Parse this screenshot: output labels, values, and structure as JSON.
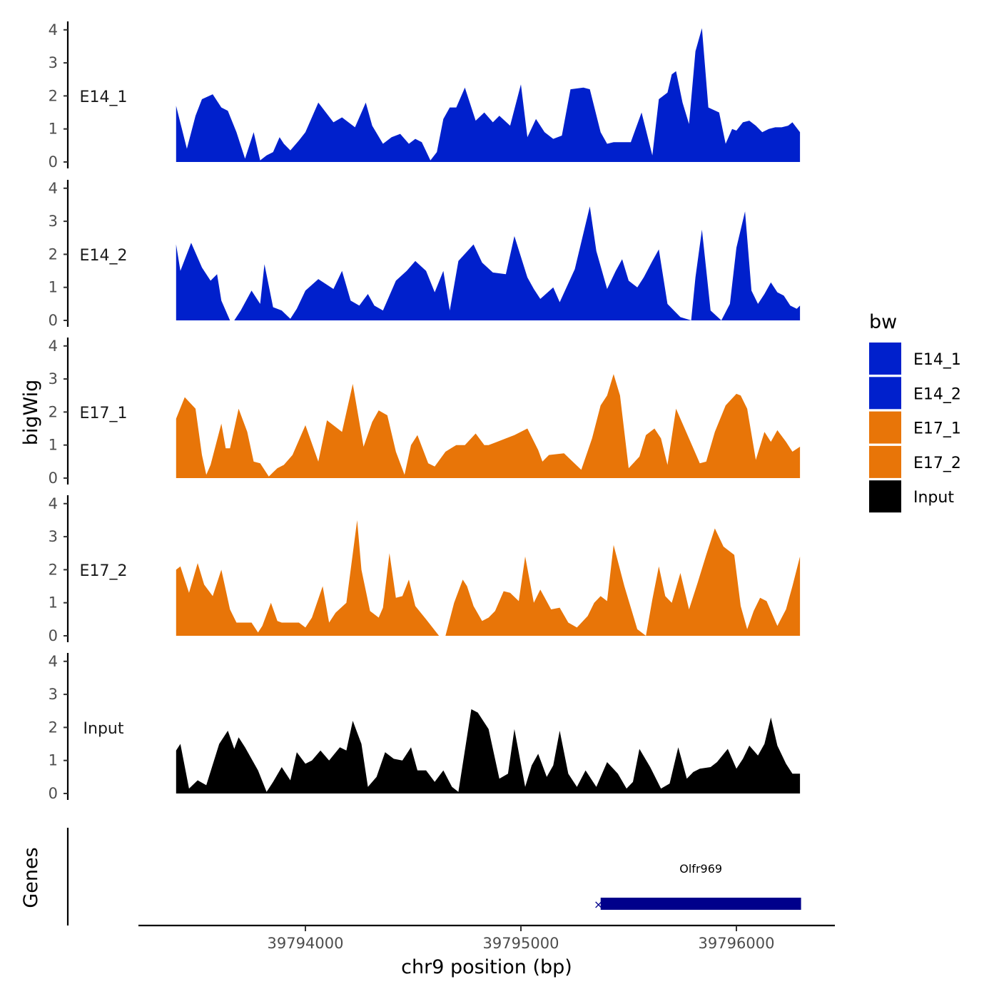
{
  "chart_data": {
    "type": "area",
    "title": "",
    "ylabel": "bigWig",
    "xlabel": "chr9 position (bp)",
    "genes_label": "Genes",
    "xlim": [
      39793230,
      39796450
    ],
    "ylim": [
      0,
      4
    ],
    "x_ticks": [
      39794000,
      39795000,
      39796000
    ],
    "x_tick_labels": [
      "39794000",
      "39795000",
      "39796000"
    ],
    "y_ticks": [
      0,
      1,
      2,
      3,
      4
    ],
    "y_tick_labels": [
      "0",
      "1",
      "2",
      "3",
      "4"
    ],
    "legend": {
      "title": "bw",
      "position": "right",
      "items": [
        {
          "label": "E14_1",
          "color": "#0020cc"
        },
        {
          "label": "E14_2",
          "color": "#0020cc"
        },
        {
          "label": "E17_1",
          "color": "#e87508"
        },
        {
          "label": "E17_2",
          "color": "#e87508"
        },
        {
          "label": "Input",
          "color": "#000000"
        }
      ]
    },
    "series": [
      {
        "name": "E14_1",
        "color": "#0020cc",
        "x": [
          39793400,
          39793450,
          39793490,
          39793520,
          39793570,
          39793610,
          39793640,
          39793680,
          39793720,
          39793760,
          39793790,
          39793820,
          39793850,
          39793880,
          39793900,
          39793930,
          39793970,
          39794000,
          39794060,
          39794130,
          39794170,
          39794230,
          39794280,
          39794310,
          39794360,
          39794400,
          39794440,
          39794480,
          39794510,
          39794540,
          39794580,
          39794610,
          39794640,
          39794670,
          39794700,
          39794740,
          39794790,
          39794830,
          39794870,
          39794900,
          39794950,
          39795000,
          39795030,
          39795070,
          39795110,
          39795150,
          39795190,
          39795230,
          39795290,
          39795320,
          39795370,
          39795400,
          39795430,
          39795460,
          39795510,
          39795560,
          39795610,
          39795640,
          39795680,
          39795700,
          39795720,
          39795750,
          39795780,
          39795810,
          39795840,
          39795870,
          39795920,
          39795950,
          39795980,
          39796000,
          39796030,
          39796060,
          39796090,
          39796120,
          39796150,
          39796180,
          39796210,
          39796240,
          39796260,
          39796295
        ],
        "y": [
          1.7,
          0.4,
          1.4,
          1.9,
          2.05,
          1.65,
          1.55,
          0.9,
          0.1,
          0.9,
          0.05,
          0.2,
          0.3,
          0.75,
          0.55,
          0.35,
          0.65,
          0.9,
          1.8,
          1.2,
          1.35,
          1.05,
          1.8,
          1.1,
          0.55,
          0.75,
          0.85,
          0.55,
          0.7,
          0.6,
          0.05,
          0.3,
          1.3,
          1.65,
          1.65,
          2.25,
          1.25,
          1.5,
          1.2,
          1.4,
          1.1,
          2.35,
          0.75,
          1.3,
          0.9,
          0.7,
          0.8,
          2.2,
          2.25,
          2.2,
          0.9,
          0.55,
          0.6,
          0.6,
          0.6,
          1.5,
          0.2,
          1.9,
          2.1,
          2.65,
          2.75,
          1.8,
          1.15,
          3.35,
          4.05,
          1.65,
          1.5,
          0.55,
          1.0,
          0.95,
          1.2,
          1.25,
          1.1,
          0.9,
          1.0,
          1.05,
          1.05,
          1.1,
          1.2,
          0.9
        ]
      },
      {
        "name": "E14_2",
        "color": "#0020cc",
        "x": [
          39793400,
          39793420,
          39793470,
          39793520,
          39793560,
          39793590,
          39793610,
          39793650,
          39793670,
          39793700,
          39793750,
          39793790,
          39793810,
          39793850,
          39793890,
          39793930,
          39793960,
          39794000,
          39794060,
          39794130,
          39794170,
          39794210,
          39794250,
          39794290,
          39794320,
          39794360,
          39794420,
          39794470,
          39794510,
          39794560,
          39794600,
          39794640,
          39794670,
          39794710,
          39794780,
          39794820,
          39794870,
          39794930,
          39794970,
          39795030,
          39795060,
          39795090,
          39795150,
          39795180,
          39795250,
          39795320,
          39795350,
          39795400,
          39795440,
          39795470,
          39795500,
          39795540,
          39795570,
          39795610,
          39795640,
          39795680,
          39795710,
          39795740,
          39795790,
          39795810,
          39795840,
          39795880,
          39795930,
          39795970,
          39796000,
          39796040,
          39796070,
          39796100,
          39796130,
          39796160,
          39796190,
          39796220,
          39796250,
          39796280,
          39796295
        ],
        "y": [
          2.3,
          1.5,
          2.35,
          1.6,
          1.2,
          1.4,
          0.6,
          0.0,
          0.0,
          0.3,
          0.9,
          0.5,
          1.7,
          0.4,
          0.3,
          0.05,
          0.35,
          0.9,
          1.25,
          0.95,
          1.5,
          0.6,
          0.45,
          0.8,
          0.45,
          0.3,
          1.2,
          1.5,
          1.8,
          1.5,
          0.85,
          1.5,
          0.3,
          1.8,
          2.3,
          1.75,
          1.45,
          1.4,
          2.55,
          1.3,
          0.95,
          0.65,
          1.0,
          0.55,
          1.55,
          3.45,
          2.1,
          0.95,
          1.5,
          1.85,
          1.2,
          1.0,
          1.3,
          1.8,
          2.15,
          0.5,
          0.3,
          0.1,
          0.0,
          1.3,
          2.75,
          0.3,
          0.0,
          0.5,
          2.2,
          3.3,
          0.9,
          0.5,
          0.8,
          1.15,
          0.85,
          0.75,
          0.45,
          0.35,
          0.45
        ]
      },
      {
        "name": "E17_1",
        "color": "#e87508",
        "x": [
          39793400,
          39793440,
          39793490,
          39793520,
          39793540,
          39793560,
          39793610,
          39793630,
          39793650,
          39793690,
          39793730,
          39793760,
          39793790,
          39793830,
          39793870,
          39793900,
          39793940,
          39794000,
          39794060,
          39794100,
          39794170,
          39794220,
          39794270,
          39794310,
          39794340,
          39794380,
          39794420,
          39794460,
          39794490,
          39794520,
          39794570,
          39794600,
          39794650,
          39794700,
          39794740,
          39794790,
          39794830,
          39794850,
          39794890,
          39794930,
          39794970,
          39795030,
          39795080,
          39795100,
          39795130,
          39795200,
          39795240,
          39795280,
          39795330,
          39795370,
          39795400,
          39795430,
          39795460,
          39795500,
          39795550,
          39795580,
          39795620,
          39795650,
          39795680,
          39795720,
          39795760,
          39795800,
          39795830,
          39795860,
          39795900,
          39795950,
          39796000,
          39796020,
          39796050,
          39796090,
          39796130,
          39796160,
          39796190,
          39796230,
          39796260,
          39796295
        ],
        "y": [
          1.8,
          2.45,
          2.1,
          0.7,
          0.1,
          0.4,
          1.65,
          0.9,
          0.9,
          2.1,
          1.4,
          0.5,
          0.45,
          0.05,
          0.3,
          0.4,
          0.7,
          1.6,
          0.5,
          1.75,
          1.4,
          2.85,
          0.95,
          1.7,
          2.05,
          1.9,
          0.8,
          0.1,
          1.0,
          1.3,
          0.45,
          0.35,
          0.8,
          1.0,
          1.0,
          1.35,
          1.0,
          1.0,
          1.1,
          1.2,
          1.3,
          1.5,
          0.85,
          0.5,
          0.7,
          0.75,
          0.5,
          0.25,
          1.2,
          2.2,
          2.5,
          3.15,
          2.5,
          0.3,
          0.65,
          1.3,
          1.5,
          1.2,
          0.4,
          2.1,
          1.5,
          0.9,
          0.45,
          0.5,
          1.4,
          2.2,
          2.55,
          2.5,
          2.1,
          0.55,
          1.4,
          1.1,
          1.45,
          1.1,
          0.8,
          0.95
        ]
      },
      {
        "name": "E17_2",
        "color": "#e87508",
        "x": [
          39793400,
          39793420,
          39793460,
          39793500,
          39793530,
          39793570,
          39793610,
          39793650,
          39793680,
          39793720,
          39793750,
          39793780,
          39793800,
          39793840,
          39793870,
          39793890,
          39793920,
          39793970,
          39794000,
          39794030,
          39794080,
          39794110,
          39794140,
          39794190,
          39794240,
          39794260,
          39794300,
          39794340,
          39794360,
          39794390,
          39794420,
          39794450,
          39794480,
          39794510,
          39794560,
          39794620,
          39794650,
          39794690,
          39794730,
          39794750,
          39794780,
          39794820,
          39794850,
          39794880,
          39794920,
          39794950,
          39794990,
          39795020,
          39795060,
          39795090,
          39795140,
          39795180,
          39795220,
          39795260,
          39795310,
          39795340,
          39795370,
          39795400,
          39795430,
          39795480,
          39795540,
          39795580,
          39795610,
          39795640,
          39795670,
          39795700,
          39795740,
          39795780,
          39795820,
          39795860,
          39795900,
          39795940,
          39795990,
          39796020,
          39796050,
          39796080,
          39796110,
          39796140,
          39796190,
          39796230,
          39796260,
          39796295
        ],
        "y": [
          2.0,
          2.1,
          1.3,
          2.2,
          1.55,
          1.2,
          2.0,
          0.8,
          0.4,
          0.4,
          0.4,
          0.1,
          0.3,
          1.0,
          0.45,
          0.4,
          0.4,
          0.4,
          0.25,
          0.55,
          1.5,
          0.4,
          0.7,
          1.0,
          3.5,
          2.0,
          0.75,
          0.55,
          0.85,
          2.5,
          1.15,
          1.2,
          1.7,
          0.9,
          0.5,
          0.0,
          0.0,
          1.0,
          1.7,
          1.5,
          0.9,
          0.45,
          0.55,
          0.75,
          1.35,
          1.3,
          1.05,
          2.4,
          1.0,
          1.4,
          0.8,
          0.85,
          0.4,
          0.25,
          0.6,
          1.0,
          1.2,
          1.05,
          2.75,
          1.5,
          0.2,
          0.0,
          1.1,
          2.1,
          1.2,
          1.0,
          1.9,
          0.8,
          1.6,
          2.45,
          3.25,
          2.7,
          2.45,
          0.9,
          0.2,
          0.75,
          1.15,
          1.05,
          0.3,
          0.8,
          1.5,
          2.4
        ]
      },
      {
        "name": "Input",
        "color": "#000000",
        "x": [
          39793400,
          39793420,
          39793460,
          39793500,
          39793540,
          39793600,
          39793640,
          39793670,
          39793690,
          39793720,
          39793780,
          39793820,
          39793850,
          39793890,
          39793930,
          39793960,
          39794000,
          39794030,
          39794070,
          39794110,
          39794160,
          39794190,
          39794220,
          39794260,
          39794290,
          39794330,
          39794370,
          39794410,
          39794450,
          39794490,
          39794520,
          39794560,
          39794600,
          39794640,
          39794680,
          39794710,
          39794770,
          39794800,
          39794850,
          39794900,
          39794940,
          39794970,
          39795020,
          39795050,
          39795080,
          39795120,
          39795150,
          39795180,
          39795220,
          39795260,
          39795300,
          39795350,
          39795400,
          39795450,
          39795490,
          39795520,
          39795550,
          39795600,
          39795650,
          39795690,
          39795730,
          39795770,
          39795800,
          39795830,
          39795880,
          39795910,
          39795960,
          39796000,
          39796030,
          39796060,
          39796100,
          39796130,
          39796160,
          39796190,
          39796230,
          39796260,
          39796295
        ],
        "y": [
          1.3,
          1.5,
          0.15,
          0.4,
          0.25,
          1.5,
          1.9,
          1.35,
          1.7,
          1.4,
          0.7,
          0.05,
          0.35,
          0.8,
          0.4,
          1.25,
          0.9,
          1.0,
          1.3,
          1.0,
          1.4,
          1.3,
          2.2,
          1.5,
          0.2,
          0.5,
          1.25,
          1.05,
          1.0,
          1.4,
          0.7,
          0.7,
          0.35,
          0.7,
          0.2,
          0.05,
          2.55,
          2.45,
          1.95,
          0.45,
          0.6,
          1.95,
          0.2,
          0.85,
          1.2,
          0.5,
          0.85,
          1.9,
          0.6,
          0.2,
          0.7,
          0.2,
          0.95,
          0.6,
          0.15,
          0.35,
          1.35,
          0.8,
          0.15,
          0.3,
          1.4,
          0.45,
          0.65,
          0.75,
          0.8,
          0.95,
          1.35,
          0.75,
          1.05,
          1.45,
          1.15,
          1.5,
          2.3,
          1.45,
          0.9,
          0.6,
          0.6
        ]
      }
    ],
    "genes": [
      {
        "name": "Olfr969",
        "start": 39795370,
        "end": 39796300,
        "strand": "-",
        "color": "#00008b"
      }
    ]
  }
}
